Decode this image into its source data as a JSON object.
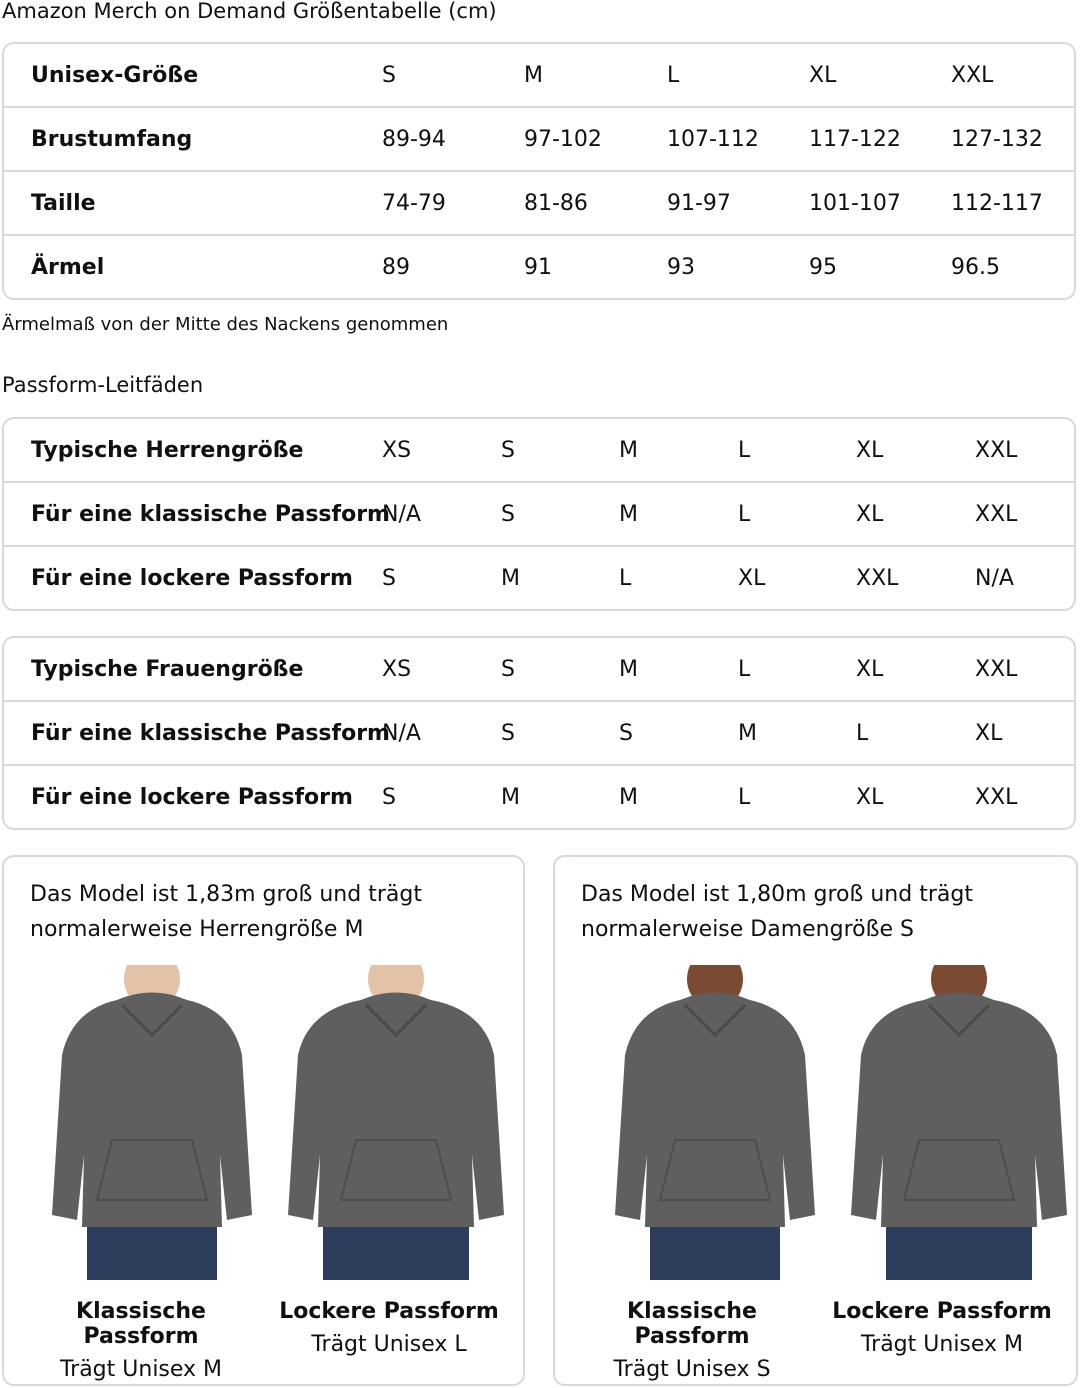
{
  "size_chart": {
    "title": "Amazon Merch on Demand Größentabelle (cm)",
    "rows": [
      {
        "label": "Unisex-Größe",
        "values": [
          "S",
          "M",
          "L",
          "XL",
          "XXL"
        ]
      },
      {
        "label": "Brustumfang",
        "values": [
          "89-94",
          "97-102",
          "107-112",
          "117-122",
          "127-132"
        ]
      },
      {
        "label": "Taille",
        "values": [
          "74-79",
          "81-86",
          "91-97",
          "101-107",
          "112-117"
        ]
      },
      {
        "label": "Ärmel",
        "values": [
          "89",
          "91",
          "93",
          "95",
          "96.5"
        ]
      }
    ],
    "note": "Ärmelmaß von der Mitte des Nackens genommen"
  },
  "fit_guides": {
    "title": "Passform-Leitfäden",
    "men": [
      {
        "label": "Typische Herrengröße",
        "values": [
          "XS",
          "S",
          "M",
          "L",
          "XL",
          "XXL"
        ]
      },
      {
        "label": "Für eine klassische Passform",
        "values": [
          "N/A",
          "S",
          "M",
          "L",
          "XL",
          "XXL"
        ]
      },
      {
        "label": "Für eine lockere Passform",
        "values": [
          "S",
          "M",
          "L",
          "XL",
          "XXL",
          "N/A"
        ]
      }
    ],
    "women": [
      {
        "label": "Typische Frauengröße",
        "values": [
          "XS",
          "S",
          "M",
          "L",
          "XL",
          "XXL"
        ]
      },
      {
        "label": "Für eine klassische Passform",
        "values": [
          "N/A",
          "S",
          "S",
          "M",
          "L",
          "XL"
        ]
      },
      {
        "label": "Für eine lockere Passform",
        "values": [
          "S",
          "M",
          "M",
          "L",
          "XL",
          "XXL"
        ]
      }
    ]
  },
  "models": [
    {
      "description": "Das Model ist 1,83m groß und trägt normalerweise Herrengröße M",
      "photos": [
        {
          "fit": "Klassische Passform",
          "wears": "Trägt Unisex M"
        },
        {
          "fit": "Lockere Passform",
          "wears": "Trägt Unisex L"
        }
      ]
    },
    {
      "description": "Das Model ist 1,80m groß und trägt normalerweise Damengröße S",
      "photos": [
        {
          "fit": "Klassische Passform",
          "wears": "Trägt Unisex S"
        },
        {
          "fit": "Lockere Passform",
          "wears": "Trägt Unisex M"
        }
      ]
    }
  ],
  "colors": {
    "hoodie": "#5f5f5f",
    "jeans": "#2c3e5c",
    "skin_light": "#e4c2a8",
    "skin_dark": "#7a4a32",
    "border": "#d5d9d9"
  }
}
